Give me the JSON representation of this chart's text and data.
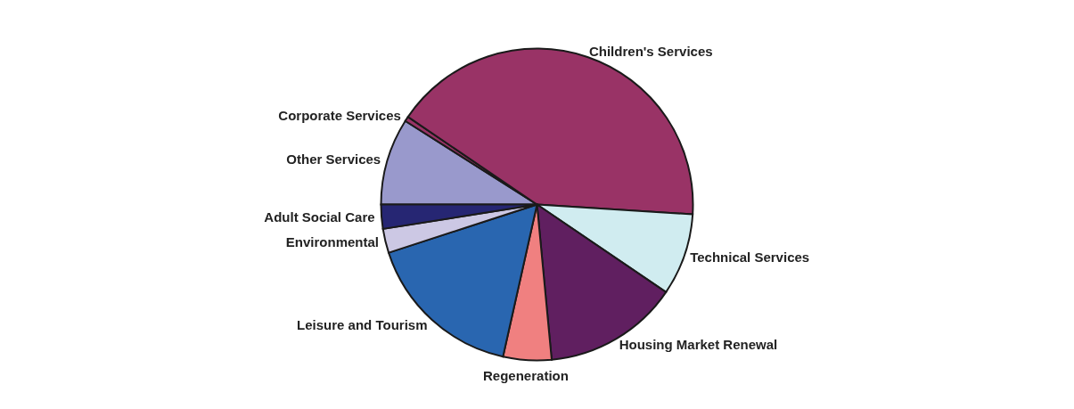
{
  "chart_data": {
    "type": "pie",
    "categories": [
      "Other Services",
      "Corporate Services",
      "Children's Services",
      "Technical Services",
      "Housing Market Renewal",
      "Regeneration",
      "Leisure and Tourism",
      "Environmental",
      "Adult Social Care"
    ],
    "values": [
      9,
      0.5,
      41.5,
      8.5,
      14,
      5,
      16.5,
      2.5,
      2.5
    ],
    "colors": [
      "#9999cc",
      "#993366",
      "#993366",
      "#d0ecf0",
      "#601f60",
      "#f08080",
      "#2966b0",
      "#ccc8e4",
      "#262673"
    ]
  }
}
